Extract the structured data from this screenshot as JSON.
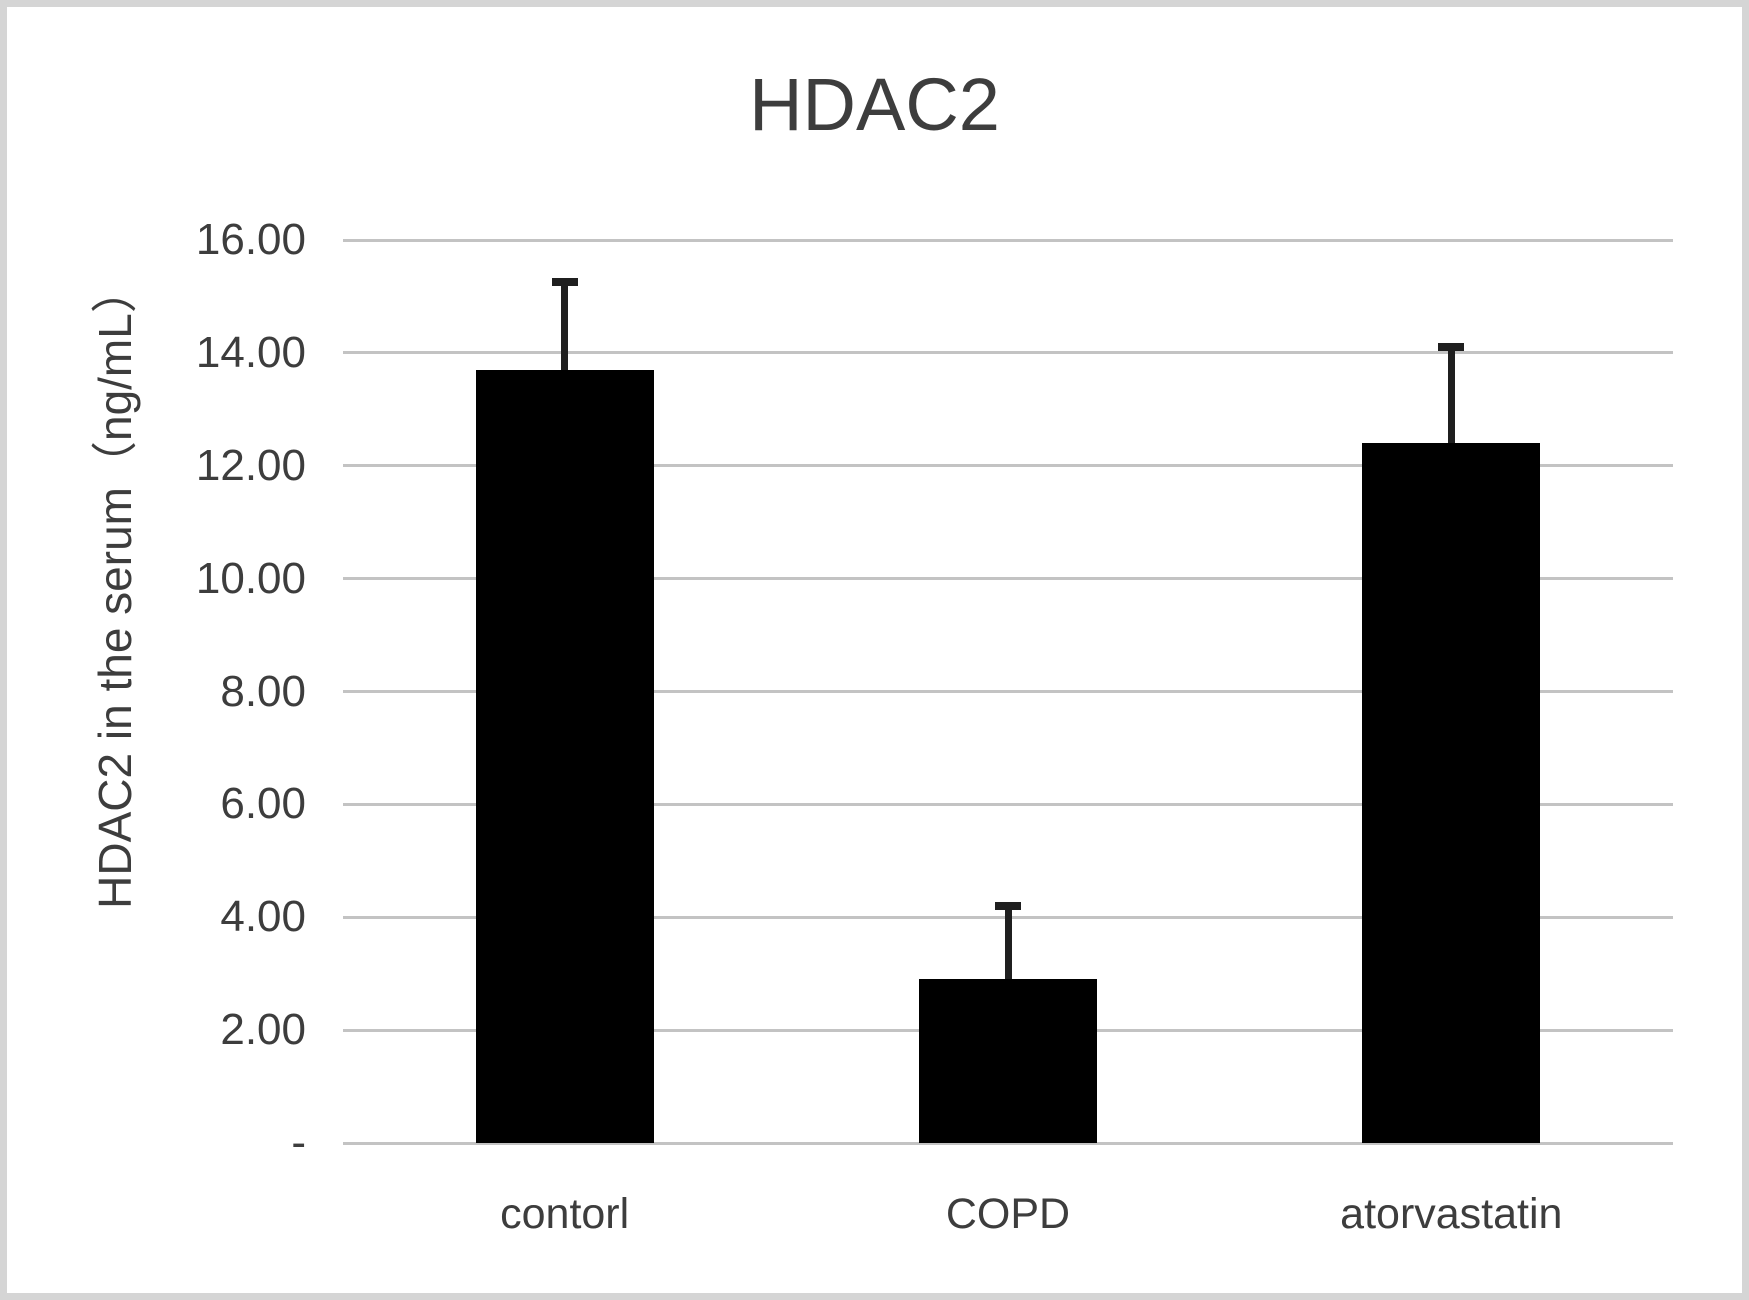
{
  "chart_data": {
    "type": "bar",
    "title": "HDAC2",
    "ylabel": "HDAC2 in the serum（ng/mL）",
    "xlabel": "",
    "categories": [
      "contorl",
      "COPD",
      "atorvastatin"
    ],
    "values": [
      13.7,
      2.9,
      12.4
    ],
    "errors_upper": [
      1.55,
      1.3,
      1.7
    ],
    "ylim": [
      0,
      16
    ],
    "yticks": [
      {
        "value": 16,
        "label": "16.00"
      },
      {
        "value": 14,
        "label": "14.00"
      },
      {
        "value": 12,
        "label": "12.00"
      },
      {
        "value": 10,
        "label": "10.00"
      },
      {
        "value": 8,
        "label": "8.00"
      },
      {
        "value": 6,
        "label": "6.00"
      },
      {
        "value": 4,
        "label": "4.00"
      },
      {
        "value": 2,
        "label": "2.00"
      },
      {
        "value": 0,
        "label": "-"
      }
    ],
    "grid": true,
    "legend": false,
    "bar_color": "#000000",
    "error_bar_color": "#1f1f1f",
    "gridline_color": "#c3c3c3",
    "text_color": "#3d3d3d",
    "background_color": "#ffffff",
    "frame_border_color": "#d5d5d5"
  }
}
